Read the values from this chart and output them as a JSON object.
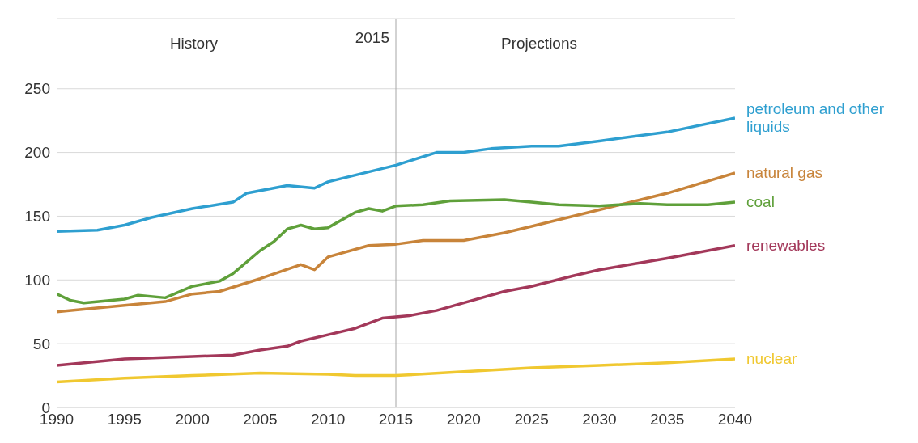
{
  "chart_data": {
    "type": "line",
    "xlim": [
      1990,
      2040
    ],
    "xticks": [
      1990,
      1995,
      2000,
      2005,
      2010,
      2015,
      2020,
      2025,
      2030,
      2035,
      2040
    ],
    "ylim": [
      0,
      305
    ],
    "yticks": [
      0,
      50,
      100,
      150,
      200,
      250
    ],
    "grid": "y",
    "marker": "none",
    "line_style": "solid",
    "ref_lines": [
      {
        "axis": "x",
        "value": 2015,
        "label": "2015",
        "color": "#a6a6a6"
      }
    ],
    "annotations": [
      "History",
      "Projections"
    ],
    "series": [
      {
        "name": "petroleum and other liquids",
        "color": "#2e9fd0",
        "x": [
          1990,
          1993,
          1995,
          1997,
          2000,
          2003,
          2004,
          2007,
          2009,
          2010,
          2015,
          2018,
          2020,
          2022,
          2025,
          2027,
          2030,
          2035,
          2040
        ],
        "values": [
          138,
          139,
          143,
          149,
          156,
          161,
          168,
          174,
          172,
          177,
          190,
          200,
          200,
          203,
          205,
          205,
          209,
          216,
          227
        ]
      },
      {
        "name": "natural gas",
        "color": "#c8843a",
        "x": [
          1990,
          1992,
          1995,
          1998,
          2000,
          2002,
          2005,
          2008,
          2009,
          2010,
          2013,
          2015,
          2017,
          2020,
          2023,
          2025,
          2030,
          2035,
          2040
        ],
        "values": [
          75,
          77,
          80,
          83,
          89,
          91,
          101,
          112,
          108,
          118,
          127,
          128,
          131,
          131,
          137,
          142,
          155,
          168,
          184
        ]
      },
      {
        "name": "coal",
        "color": "#5fa03a",
        "x": [
          1990,
          1991,
          1992,
          1995,
          1996,
          1998,
          2000,
          2002,
          2003,
          2005,
          2006,
          2007,
          2008,
          2009,
          2010,
          2012,
          2013,
          2014,
          2015,
          2017,
          2019,
          2023,
          2025,
          2027,
          2030,
          2033,
          2035,
          2038,
          2040
        ],
        "values": [
          89,
          84,
          82,
          85,
          88,
          86,
          95,
          99,
          105,
          123,
          130,
          140,
          143,
          140,
          141,
          153,
          156,
          154,
          158,
          159,
          162,
          163,
          161,
          159,
          158,
          160,
          159,
          159,
          161
        ]
      },
      {
        "name": "renewables",
        "color": "#a3385a",
        "x": [
          1990,
          1995,
          2000,
          2003,
          2005,
          2007,
          2008,
          2010,
          2012,
          2014,
          2016,
          2018,
          2020,
          2023,
          2025,
          2028,
          2030,
          2035,
          2040
        ],
        "values": [
          33,
          38,
          40,
          41,
          45,
          48,
          52,
          57,
          62,
          70,
          72,
          76,
          82,
          91,
          95,
          103,
          108,
          117,
          127
        ]
      },
      {
        "name": "nuclear",
        "color": "#f0c830",
        "x": [
          1990,
          1995,
          2000,
          2005,
          2010,
          2012,
          2015,
          2020,
          2025,
          2030,
          2035,
          2040
        ],
        "values": [
          20,
          23,
          25,
          27,
          26,
          25,
          25,
          28,
          31,
          33,
          35,
          38
        ]
      }
    ]
  }
}
